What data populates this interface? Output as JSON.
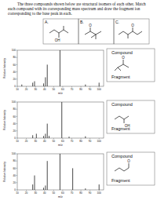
{
  "question": "The three compounds shown below are structural isomers of each other. Match each compound with its corresponding mass spectrum and draw the fragment ion corresponding to the base peak in each.",
  "compounds": [
    {
      "label": "A.",
      "atom": "OH"
    },
    {
      "label": "B.",
      "atom": "O"
    },
    {
      "label": "C.",
      "atom": "O"
    }
  ],
  "chart_data": [
    {
      "type": "bar",
      "x_label": "m/z",
      "y_label": "Relative Intensity",
      "x": [
        15,
        27,
        29,
        39,
        41,
        43,
        57,
        85,
        100
      ],
      "values": [
        5,
        10,
        14,
        8,
        25,
        60,
        100,
        5,
        10
      ],
      "xlim": [
        10,
        105
      ],
      "ylim": [
        0,
        100
      ],
      "xticks": [
        10,
        20,
        30,
        40,
        50,
        60,
        70,
        80,
        90,
        100
      ],
      "yticks": [
        0,
        20,
        40,
        60,
        80,
        100
      ],
      "color": "#333333",
      "annotations": [
        "Compound",
        "Fragment",
        "O"
      ]
    },
    {
      "type": "bar",
      "x_label": "m/z",
      "y_label": "Relative Intensity",
      "x": [
        27,
        31,
        39,
        41,
        43,
        45,
        59,
        67,
        85
      ],
      "values": [
        8,
        12,
        6,
        12,
        40,
        6,
        100,
        4,
        5
      ],
      "xlim": [
        10,
        105
      ],
      "ylim": [
        0,
        100
      ],
      "xticks": [
        10,
        20,
        30,
        40,
        50,
        60,
        70,
        80,
        90,
        100
      ],
      "yticks": [
        0,
        20,
        40,
        60,
        80,
        100
      ],
      "color": "#333333",
      "annotations": [
        "Compound",
        "Fragment",
        "OH"
      ]
    },
    {
      "type": "bar",
      "x_label": "m/z",
      "y_label": "Relative Intensity",
      "x": [
        27,
        29,
        39,
        41,
        43,
        57,
        71,
        85,
        100
      ],
      "values": [
        15,
        40,
        6,
        12,
        80,
        100,
        60,
        4,
        15
      ],
      "xlim": [
        10,
        105
      ],
      "ylim": [
        0,
        100
      ],
      "xticks": [
        10,
        20,
        30,
        40,
        50,
        60,
        70,
        80,
        90,
        100
      ],
      "yticks": [
        0,
        20,
        40,
        60,
        80,
        100
      ],
      "color": "#333333",
      "annotations": [
        "Compound",
        "Fragment",
        "O"
      ]
    }
  ]
}
